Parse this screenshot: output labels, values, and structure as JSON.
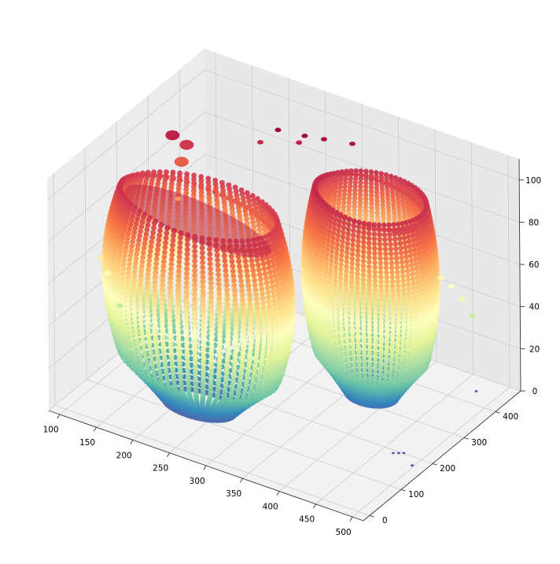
{
  "chart_data": {
    "type": "scatter",
    "projection": "3d",
    "title": "",
    "xlabel": "",
    "ylabel": "",
    "zlabel": "",
    "x_ticks": [
      100,
      150,
      200,
      250,
      300,
      350,
      400,
      450,
      500
    ],
    "y_ticks": [
      0,
      100,
      200,
      300,
      400
    ],
    "z_ticks": [
      0,
      20,
      40,
      60,
      80,
      100
    ],
    "xlim": [
      85,
      515
    ],
    "ylim": [
      -20,
      480
    ],
    "zlim": [
      0,
      110
    ],
    "colormap": "Spectral",
    "colormap_colors": [
      "#9e0142",
      "#d53e4f",
      "#f46d43",
      "#fdae61",
      "#fee08b",
      "#ffffbf",
      "#e6f598",
      "#abdda4",
      "#66c2a5",
      "#3288bd",
      "#5e4fa2"
    ],
    "color_by": "z",
    "grid": true,
    "pane_color": "#f2f2f2",
    "grid_color": "#cccccc",
    "objects": [
      {
        "name": "front-shell",
        "points": [
          [
            150,
            60,
            98
          ],
          [
            230,
            60,
            101
          ],
          [
            310,
            60,
            98
          ],
          [
            140,
            115,
            74
          ],
          [
            240,
            120,
            80
          ],
          [
            320,
            120,
            78
          ],
          [
            175,
            130,
            45
          ],
          [
            255,
            145,
            42
          ],
          [
            300,
            140,
            50
          ],
          [
            215,
            150,
            15
          ],
          [
            255,
            160,
            10
          ],
          [
            285,
            150,
            18
          ]
        ]
      },
      {
        "name": "back-shell",
        "points": [
          [
            320,
            230,
            102
          ],
          [
            390,
            250,
            103
          ],
          [
            430,
            290,
            98
          ],
          [
            325,
            260,
            76
          ],
          [
            390,
            280,
            74
          ],
          [
            440,
            300,
            70
          ],
          [
            350,
            300,
            45
          ],
          [
            400,
            310,
            40
          ],
          [
            430,
            320,
            30
          ],
          [
            380,
            320,
            14
          ],
          [
            405,
            330,
            10
          ]
        ]
      },
      {
        "name": "top-left-fragment",
        "points": [
          [
            140,
            250,
            104
          ],
          [
            155,
            260,
            100
          ],
          [
            150,
            255,
            92
          ]
        ]
      },
      {
        "name": "small-fragments-top",
        "points": [
          [
            250,
            330,
            110
          ],
          [
            280,
            345,
            109
          ],
          [
            300,
            360,
            108
          ],
          [
            330,
            380,
            107
          ],
          [
            230,
            320,
            103
          ],
          [
            270,
            350,
            104
          ]
        ]
      },
      {
        "name": "left-fragments",
        "points": [
          [
            110,
            90,
            62
          ],
          [
            115,
            100,
            54
          ],
          [
            120,
            110,
            46
          ],
          [
            125,
            115,
            38
          ],
          [
            160,
            220,
            80
          ]
        ]
      },
      {
        "name": "right-fragments",
        "points": [
          [
            450,
            380,
            58
          ],
          [
            460,
            390,
            54
          ],
          [
            470,
            400,
            48
          ],
          [
            480,
            410,
            40
          ]
        ]
      },
      {
        "name": "floor-specks",
        "points": [
          [
            470,
            180,
            2
          ],
          [
            475,
            185,
            2
          ],
          [
            480,
            190,
            2
          ],
          [
            500,
            170,
            1
          ],
          [
            480,
            420,
            3
          ]
        ]
      }
    ]
  }
}
